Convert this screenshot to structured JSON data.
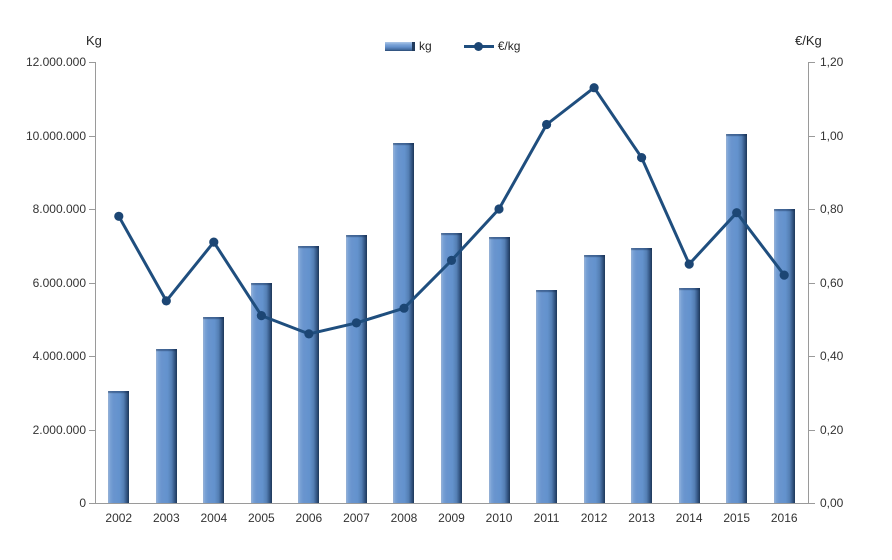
{
  "chart_data": {
    "type": "combo-bar-line",
    "categories": [
      "2002",
      "2003",
      "2004",
      "2005",
      "2006",
      "2007",
      "2008",
      "2009",
      "2010",
      "2011",
      "2012",
      "2013",
      "2014",
      "2015",
      "2016"
    ],
    "series": [
      {
        "name": "kg",
        "type": "bar",
        "axis": "left",
        "values": [
          3050000,
          4200000,
          5050000,
          6000000,
          7000000,
          7300000,
          9800000,
          7350000,
          7250000,
          5800000,
          6750000,
          6950000,
          5850000,
          10050000,
          8000000
        ]
      },
      {
        "name": "€/kg",
        "type": "line",
        "axis": "right",
        "values": [
          0.78,
          0.55,
          0.71,
          0.51,
          0.46,
          0.49,
          0.53,
          0.66,
          0.8,
          1.03,
          1.13,
          0.94,
          0.65,
          0.79,
          0.62
        ]
      }
    ],
    "left_axis": {
      "title": "Kg",
      "min": 0,
      "max": 12000000,
      "tick_step": 2000000,
      "tick_labels": [
        "12.000.000",
        "10.000.000",
        "8.000.000",
        "6.000.000",
        "4.000.000",
        "2.000.000",
        "0"
      ]
    },
    "right_axis": {
      "title": "€/Kg",
      "min": 0,
      "max": 1.2,
      "tick_step": 0.2,
      "tick_labels": [
        "1,20",
        "1,00",
        "0,80",
        "0,60",
        "0,40",
        "0,20",
        "0,00"
      ]
    },
    "legend": {
      "position": "top-center",
      "items": [
        {
          "label": "kg",
          "marker": "bar-swatch"
        },
        {
          "label": "€/kg",
          "marker": "line-dot-swatch"
        }
      ]
    },
    "grid": "off",
    "colors": {
      "bar_fill": "#6490cb",
      "bar_highlight": "#a7c1e4",
      "bar_shadow": "#203a5c",
      "line": "#1f4e7e",
      "marker": "#1c4674",
      "axis_line": "#9a9a9a",
      "text": "#333333"
    }
  }
}
